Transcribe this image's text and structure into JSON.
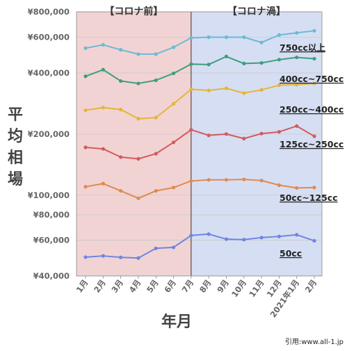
{
  "chart_data": {
    "type": "line",
    "xlabel": "年月",
    "ylabel": "平均相場",
    "y_scale": "log",
    "ylim": [
      40000,
      800000
    ],
    "yticks": [
      {
        "value": 40000,
        "label": "¥40,000"
      },
      {
        "value": 60000,
        "label": "¥60,000"
      },
      {
        "value": 80000,
        "label": "¥80,000"
      },
      {
        "value": 100000,
        "label": "¥100,000"
      },
      {
        "value": 200000,
        "label": "¥200,000"
      },
      {
        "value": 400000,
        "label": "¥400,000"
      },
      {
        "value": 600000,
        "label": "¥600,000"
      },
      {
        "value": 800000,
        "label": "¥800,000"
      }
    ],
    "categories": [
      "1月",
      "2月",
      "3月",
      "4月",
      "5月",
      "6月",
      "7月",
      "8月",
      "9月",
      "10月",
      "11月",
      "12月",
      "2021年1月",
      "2月"
    ],
    "periods": [
      {
        "label": "【コロナ前】",
        "start_index": 0,
        "end_index": 6,
        "color": "#f2d3d3"
      },
      {
        "label": "【コロナ渦】",
        "start_index": 6,
        "end_index": 13,
        "color": "#d6def3"
      }
    ],
    "grid": true,
    "series": [
      {
        "name": "750cc以上",
        "color": "#6cbad4",
        "values": [
          530000,
          550000,
          520000,
          495000,
          495000,
          535000,
          595000,
          600000,
          600000,
          600000,
          565000,
          615000,
          630000,
          645000
        ]
      },
      {
        "name": "400cc~750cc",
        "color": "#3d9e7d",
        "values": [
          385000,
          415000,
          365000,
          355000,
          368000,
          398000,
          442000,
          440000,
          482000,
          445000,
          448000,
          465000,
          477000,
          470000
        ]
      },
      {
        "name": "250cc~400cc",
        "color": "#e3b53a",
        "values": [
          262000,
          270000,
          264000,
          238000,
          241000,
          282000,
          332000,
          328000,
          336000,
          318000,
          330000,
          348000,
          350000,
          355000
        ]
      },
      {
        "name": "125cc~250cc",
        "color": "#d35a5e",
        "values": [
          172000,
          169000,
          154000,
          151000,
          160000,
          182000,
          210000,
          197000,
          200000,
          190000,
          201000,
          205000,
          219000,
          195000
        ]
      },
      {
        "name": "50cc~125cc",
        "color": "#e08a4f",
        "values": [
          110000,
          114000,
          105000,
          96500,
          105000,
          109000,
          117500,
          119000,
          119000,
          119500,
          118000,
          112000,
          108500,
          109000
        ]
      },
      {
        "name": "50cc",
        "color": "#6e85e2",
        "values": [
          49500,
          50200,
          49400,
          49000,
          54700,
          55300,
          63300,
          64300,
          60700,
          60400,
          61800,
          62600,
          63800,
          59600
        ]
      }
    ]
  },
  "credit": "引用:www.all-1.jp"
}
